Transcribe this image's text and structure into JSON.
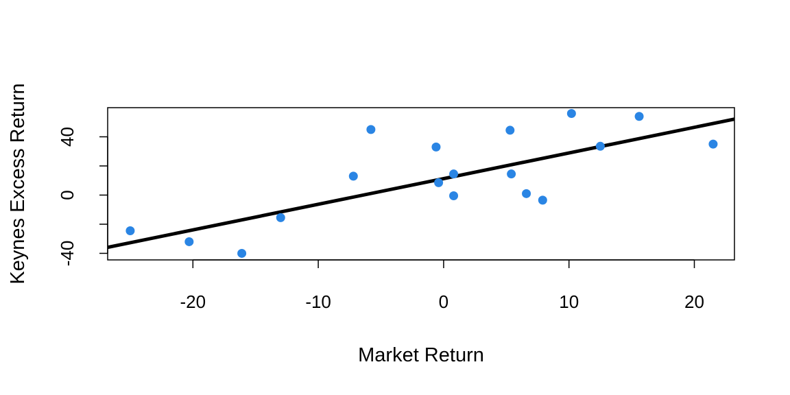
{
  "chart_data": {
    "type": "scatter",
    "xlabel": "Market Return",
    "ylabel": "Keynes Excess Return",
    "xlim": [
      -26.8,
      23.2
    ],
    "ylim": [
      -44.5,
      60
    ],
    "x_ticks": [
      -20,
      -10,
      0,
      10,
      20
    ],
    "x_tick_labels": [
      "-20",
      "-10",
      "0",
      "10",
      "20"
    ],
    "y_ticks": [
      -40,
      -20,
      0,
      20,
      40
    ],
    "y_tick_labels": [
      "-40",
      "",
      "0",
      "",
      "40"
    ],
    "grid": false,
    "point_color": "#2A85E4",
    "line_color": "#000000",
    "points": [
      {
        "x": -25.0,
        "y": -24.5
      },
      {
        "x": -20.3,
        "y": -32.0
      },
      {
        "x": -16.1,
        "y": -40.0
      },
      {
        "x": -13.0,
        "y": -15.5
      },
      {
        "x": -7.2,
        "y": 13.0
      },
      {
        "x": -5.8,
        "y": 45.0
      },
      {
        "x": -0.6,
        "y": 33.0
      },
      {
        "x": -0.4,
        "y": 8.5
      },
      {
        "x": 0.8,
        "y": 14.5
      },
      {
        "x": 0.8,
        "y": -0.5
      },
      {
        "x": 5.3,
        "y": 44.5
      },
      {
        "x": 5.4,
        "y": 14.5
      },
      {
        "x": 6.6,
        "y": 1.0
      },
      {
        "x": 7.9,
        "y": -3.5
      },
      {
        "x": 10.2,
        "y": 56.0
      },
      {
        "x": 12.5,
        "y": 33.5
      },
      {
        "x": 15.6,
        "y": 54.0
      },
      {
        "x": 21.5,
        "y": 35.0
      }
    ],
    "regression_line": {
      "intercept": 11.3,
      "slope": 1.76
    }
  }
}
